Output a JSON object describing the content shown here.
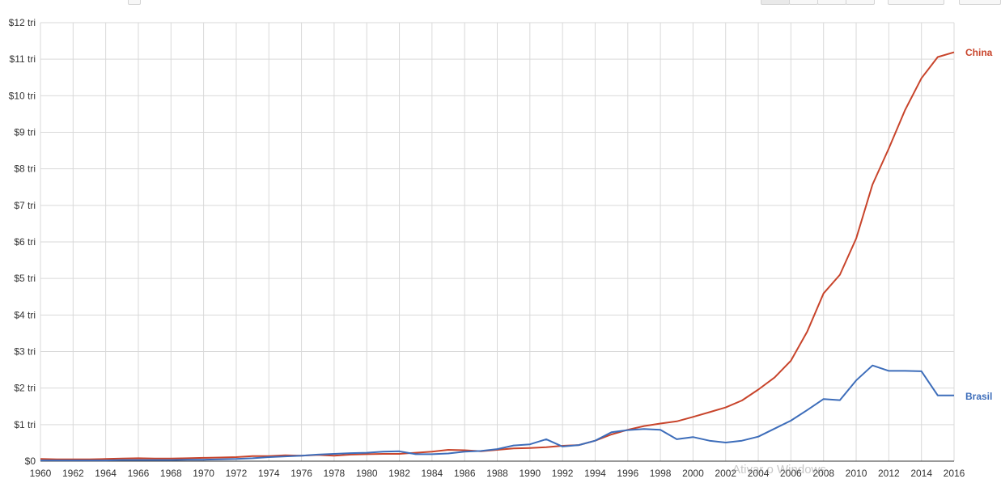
{
  "chart_data": {
    "type": "line",
    "title": "",
    "xlabel": "",
    "ylabel": "",
    "x": [
      1960,
      1961,
      1962,
      1963,
      1964,
      1965,
      1966,
      1967,
      1968,
      1969,
      1970,
      1971,
      1972,
      1973,
      1974,
      1975,
      1976,
      1977,
      1978,
      1979,
      1980,
      1981,
      1982,
      1983,
      1984,
      1985,
      1986,
      1987,
      1988,
      1989,
      1990,
      1991,
      1992,
      1993,
      1994,
      1995,
      1996,
      1997,
      1998,
      1999,
      2000,
      2001,
      2002,
      2003,
      2004,
      2005,
      2006,
      2007,
      2008,
      2009,
      2010,
      2011,
      2012,
      2013,
      2014,
      2015,
      2016
    ],
    "series": [
      {
        "name": "China",
        "color": "#c8442b",
        "values": [
          0.06,
          0.05,
          0.05,
          0.05,
          0.06,
          0.07,
          0.08,
          0.07,
          0.07,
          0.08,
          0.09,
          0.1,
          0.11,
          0.14,
          0.14,
          0.16,
          0.15,
          0.17,
          0.15,
          0.18,
          0.19,
          0.2,
          0.2,
          0.23,
          0.26,
          0.31,
          0.3,
          0.27,
          0.31,
          0.35,
          0.36,
          0.38,
          0.42,
          0.44,
          0.56,
          0.73,
          0.86,
          0.96,
          1.03,
          1.09,
          1.21,
          1.34,
          1.47,
          1.66,
          1.96,
          2.29,
          2.75,
          3.55,
          4.59,
          5.1,
          6.09,
          7.57,
          8.56,
          9.61,
          10.48,
          11.06,
          11.19
        ]
      },
      {
        "name": "Brasil",
        "color": "#3d6dba",
        "values": [
          0.02,
          0.02,
          0.02,
          0.02,
          0.02,
          0.03,
          0.03,
          0.03,
          0.03,
          0.04,
          0.04,
          0.05,
          0.06,
          0.08,
          0.11,
          0.13,
          0.15,
          0.18,
          0.2,
          0.22,
          0.23,
          0.26,
          0.27,
          0.19,
          0.19,
          0.21,
          0.26,
          0.28,
          0.33,
          0.43,
          0.46,
          0.6,
          0.4,
          0.44,
          0.56,
          0.79,
          0.85,
          0.88,
          0.86,
          0.6,
          0.66,
          0.56,
          0.51,
          0.56,
          0.67,
          0.89,
          1.11,
          1.4,
          1.7,
          1.67,
          2.21,
          2.62,
          2.47,
          2.47,
          2.46,
          1.8,
          1.8
        ]
      }
    ],
    "ylim": [
      0,
      12
    ],
    "yticks": [
      0,
      1,
      2,
      3,
      4,
      5,
      6,
      7,
      8,
      9,
      10,
      11,
      12
    ],
    "ytick_labels": [
      "$0",
      "$1 tri",
      "$2 tri",
      "$3 tri",
      "$4 tri",
      "$5 tri",
      "$6 tri",
      "$7 tri",
      "$8 tri",
      "$9 tri",
      "$10 tri",
      "$11 tri",
      "$12 tri"
    ],
    "xticks": [
      1960,
      1962,
      1964,
      1966,
      1968,
      1970,
      1972,
      1974,
      1976,
      1978,
      1980,
      1982,
      1984,
      1986,
      1988,
      1990,
      1992,
      1994,
      1996,
      1998,
      2000,
      2002,
      2004,
      2006,
      2008,
      2010,
      2012,
      2014,
      2016
    ],
    "xlim": [
      1960,
      2016
    ],
    "grid": true,
    "legend": "inline-right",
    "watermark": "Ativar o Windows",
    "colors": {
      "grid": "#d9d9d9",
      "axis": "#333333"
    }
  }
}
